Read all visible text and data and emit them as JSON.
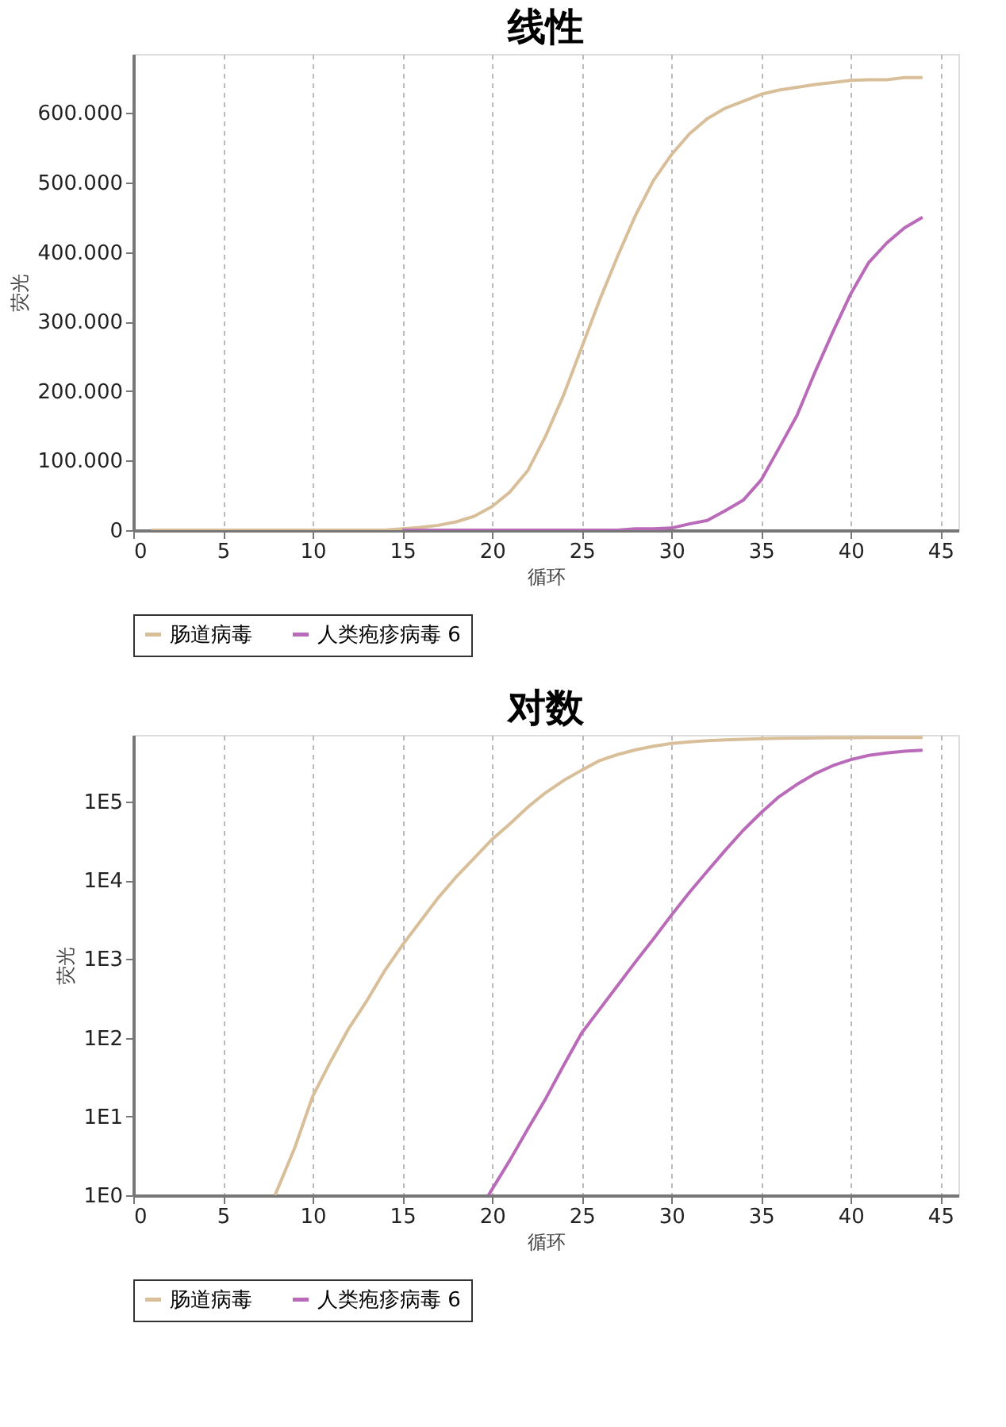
{
  "chart_data": [
    {
      "type": "line",
      "title": "线性",
      "xlabel": "循环",
      "ylabel": "荧光",
      "xlim": [
        0,
        46
      ],
      "xticks": [
        0,
        5,
        10,
        15,
        20,
        25,
        30,
        35,
        40,
        45
      ],
      "ylim": [
        0,
        685000
      ],
      "yticks": [
        {
          "value": 0,
          "label": "0"
        },
        {
          "value": 100000,
          "label": "100.000"
        },
        {
          "value": 200000,
          "label": "200.000"
        },
        {
          "value": 300000,
          "label": "300.000"
        },
        {
          "value": 400000,
          "label": "400.000"
        },
        {
          "value": 500000,
          "label": "500.000"
        },
        {
          "value": 600000,
          "label": "600.000"
        }
      ],
      "grid": "x",
      "legend": "bottom",
      "marker": "none",
      "line_style": "solid",
      "x": [
        1,
        2,
        3,
        4,
        5,
        6,
        7,
        8,
        9,
        10,
        11,
        12,
        13,
        14,
        15,
        16,
        17,
        18,
        19,
        20,
        21,
        22,
        23,
        24,
        25,
        26,
        27,
        28,
        29,
        30,
        31,
        32,
        33,
        34,
        35,
        36,
        37,
        38,
        39,
        40,
        41,
        42,
        43,
        44
      ],
      "series": [
        {
          "name": "肠道病毒",
          "color": "#d8bf9a",
          "values": [
            0,
            0,
            0,
            0,
            0,
            0,
            0,
            0,
            0,
            0,
            0,
            0,
            0,
            0,
            2000,
            4000,
            7000,
            12000,
            20000,
            34000,
            55000,
            86000,
            136000,
            195000,
            263000,
            331000,
            394000,
            453000,
            503000,
            540000,
            570000,
            592000,
            607000,
            617000,
            627000,
            633000,
            637000,
            641000,
            644000,
            647000,
            648000,
            648000,
            651000,
            651000
          ]
        },
        {
          "name": "人类疱疹病毒 6",
          "color": "#b96ab8",
          "values": [
            null,
            null,
            null,
            null,
            null,
            null,
            null,
            null,
            null,
            null,
            null,
            null,
            null,
            null,
            0,
            0,
            0,
            0,
            0,
            0,
            0,
            0,
            0,
            0,
            0,
            0,
            0,
            2000,
            2000,
            3000,
            9000,
            14000,
            28000,
            43000,
            72000,
            118000,
            165000,
            227000,
            285000,
            340000,
            385000,
            413000,
            435000,
            450000
          ]
        }
      ]
    },
    {
      "type": "line",
      "title": "对数",
      "xlabel": "循环",
      "ylabel": "荧光",
      "xlim": [
        0,
        46
      ],
      "xticks": [
        0,
        5,
        10,
        15,
        20,
        25,
        30,
        35,
        40,
        45
      ],
      "ylim": [
        1,
        700000
      ],
      "log": true,
      "yticks": [
        {
          "value": 1,
          "label": "1E0"
        },
        {
          "value": 10,
          "label": "1E1"
        },
        {
          "value": 100,
          "label": "1E2"
        },
        {
          "value": 1000,
          "label": "1E3"
        },
        {
          "value": 10000,
          "label": "1E4"
        },
        {
          "value": 100000,
          "label": "1E5"
        }
      ],
      "grid": "x",
      "legend": "bottom",
      "marker": "none",
      "line_style": "solid",
      "series": [
        {
          "name": "肠道病毒",
          "color": "#d8bf9a",
          "x": [
            7.9,
            9,
            10,
            11,
            12,
            13,
            14,
            15,
            16,
            17,
            18,
            19,
            20,
            21,
            22,
            23,
            24,
            25,
            26,
            27,
            28,
            29,
            30,
            31,
            32,
            33,
            34,
            35,
            36,
            37,
            38,
            39,
            40,
            41,
            42,
            43,
            44
          ],
          "values": [
            1,
            4,
            18,
            50,
            130,
            290,
            700,
            1500,
            3000,
            6000,
            11000,
            19000,
            33000,
            52000,
            85000,
            130000,
            185000,
            250000,
            331000,
            394000,
            453000,
            503000,
            545000,
            570000,
            592000,
            607000,
            617000,
            627000,
            633000,
            637000,
            641000,
            644000,
            647000,
            648000,
            648000,
            651000,
            651000
          ]
        },
        {
          "name": "人类疱疹病毒 6",
          "color": "#b96ab8",
          "x": [
            19.8,
            21,
            22,
            23,
            24,
            25,
            26,
            27,
            28,
            29,
            30,
            31,
            32,
            33,
            34,
            35,
            36,
            37,
            38,
            39,
            40,
            41,
            42,
            43,
            44
          ],
          "values": [
            1,
            2.8,
            7,
            17,
            45,
            115,
            230,
            460,
            920,
            1800,
            3600,
            7000,
            13000,
            24000,
            43000,
            72000,
            115000,
            165000,
            225000,
            285000,
            340000,
            385000,
            413000,
            435000,
            448000
          ]
        }
      ]
    }
  ]
}
